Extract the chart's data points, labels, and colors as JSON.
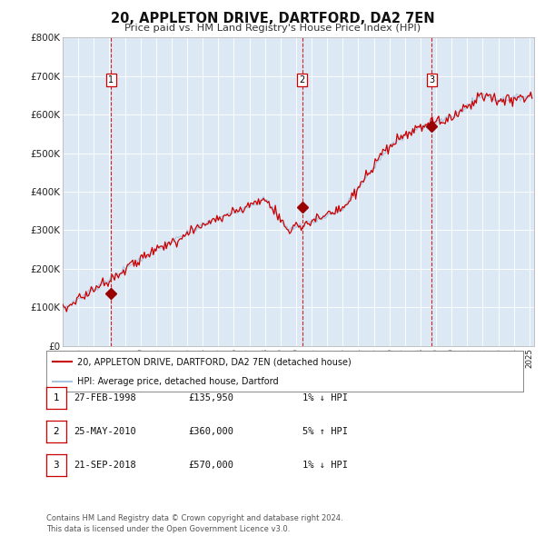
{
  "title": "20, APPLETON DRIVE, DARTFORD, DA2 7EN",
  "subtitle": "Price paid vs. HM Land Registry's House Price Index (HPI)",
  "background_color": "white",
  "plot_bg_color": "#dce9f5",
  "hpi_line_color": "#a8c4e0",
  "price_line_color": "#cc0000",
  "marker_color": "#990000",
  "vline_color": "#cc0000",
  "ylim": [
    0,
    800000
  ],
  "yticks": [
    0,
    100000,
    200000,
    300000,
    400000,
    500000,
    600000,
    700000,
    800000
  ],
  "ytick_labels": [
    "£0",
    "£100K",
    "£200K",
    "£300K",
    "£400K",
    "£500K",
    "£600K",
    "£700K",
    "£800K"
  ],
  "sales": [
    {
      "date_num": 1998.12,
      "price": 135950,
      "label": "1"
    },
    {
      "date_num": 2010.39,
      "price": 360000,
      "label": "2"
    },
    {
      "date_num": 2018.72,
      "price": 570000,
      "label": "3"
    }
  ],
  "legend_house_label": "20, APPLETON DRIVE, DARTFORD, DA2 7EN (detached house)",
  "legend_hpi_label": "HPI: Average price, detached house, Dartford",
  "table_rows": [
    {
      "num": "1",
      "date": "27-FEB-1998",
      "price": "£135,950",
      "pct": "1%",
      "dir": "↓",
      "vs": "HPI"
    },
    {
      "num": "2",
      "date": "25-MAY-2010",
      "price": "£360,000",
      "pct": "5%",
      "dir": "↑",
      "vs": "HPI"
    },
    {
      "num": "3",
      "date": "21-SEP-2018",
      "price": "£570,000",
      "pct": "1%",
      "dir": "↓",
      "vs": "HPI"
    }
  ],
  "footer": "Contains HM Land Registry data © Crown copyright and database right 2024.\nThis data is licensed under the Open Government Licence v3.0."
}
